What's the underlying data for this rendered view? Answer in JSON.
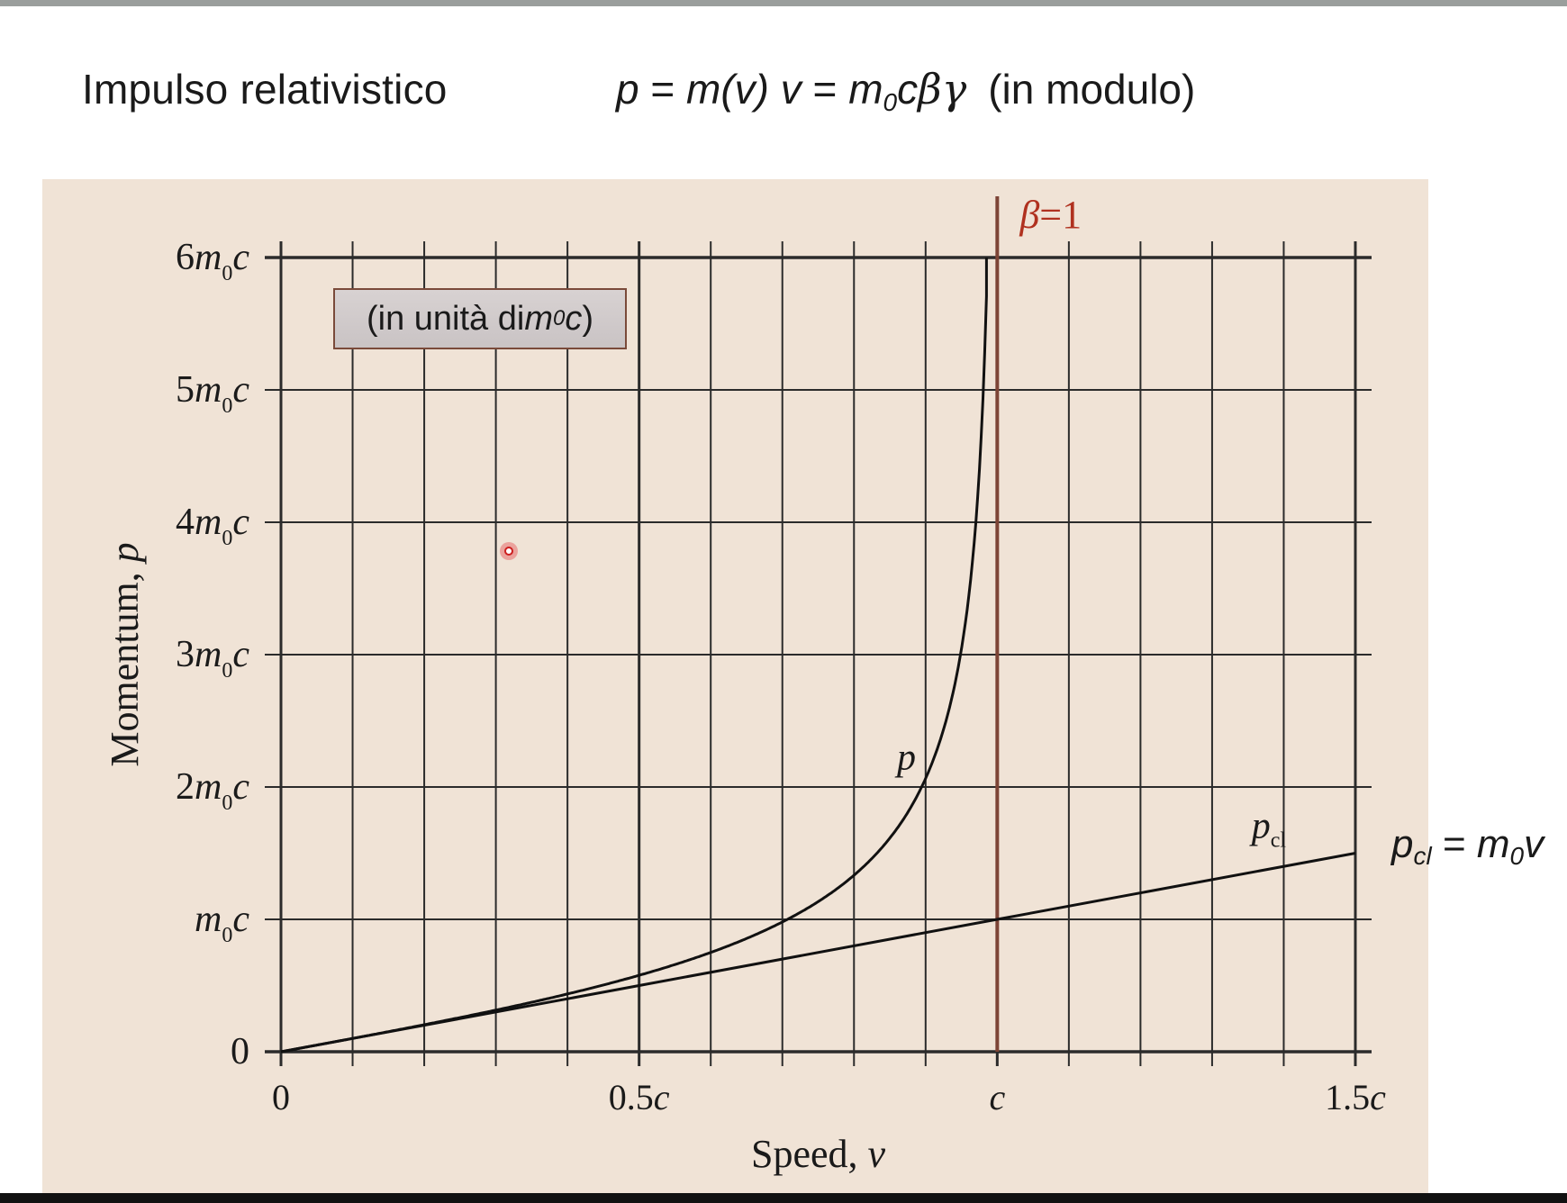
{
  "slide": {
    "title": "Impulso relativistico",
    "formula": {
      "lhs": "p",
      "eq1": " = ",
      "mv": "m(v) v",
      "eq2": " = ",
      "m": "m",
      "m_sub": "0",
      "c": "c",
      "beta_gamma": "βγ",
      "note": "(in modulo)"
    }
  },
  "box_label": {
    "open": "(in unità di ",
    "m": "m",
    "sub": "0",
    "c": "c",
    "close": ")"
  },
  "pcl_formula": {
    "p": "p",
    "p_sub": "cl",
    "eq": " = ",
    "m": "m",
    "m_sub": "0",
    "v": "v"
  },
  "colors": {
    "panel_bg": "#f0e3d6",
    "grid": "#2b2b2b",
    "beta_line": "#7d4436",
    "beta_label": "#b0311f"
  },
  "chart_data": {
    "type": "line",
    "xlabel": "Speed, v",
    "ylabel": "Momentum, p",
    "xlim": [
      0,
      1.5
    ],
    "ylim": [
      0,
      6
    ],
    "x_ticks": [
      {
        "value": 0,
        "label": "0"
      },
      {
        "value": 0.5,
        "label": "0.5c"
      },
      {
        "value": 1,
        "label": "c"
      },
      {
        "value": 1.5,
        "label": "1.5c"
      }
    ],
    "y_ticks": [
      {
        "value": 0,
        "label": "0"
      },
      {
        "value": 1,
        "label": "m0c"
      },
      {
        "value": 2,
        "label": "2m0c"
      },
      {
        "value": 3,
        "label": "3m0c"
      },
      {
        "value": 4,
        "label": "4m0c"
      },
      {
        "value": 5,
        "label": "5m0c"
      },
      {
        "value": 6,
        "label": "6m0c"
      }
    ],
    "grid_minor_step": 0.1,
    "grid": true,
    "series": [
      {
        "name": "p",
        "x": [
          0,
          0.1,
          0.2,
          0.3,
          0.4,
          0.5,
          0.6,
          0.7,
          0.8,
          0.85,
          0.9,
          0.93,
          0.95,
          0.96,
          0.97,
          0.98,
          0.985
        ],
        "y": [
          0,
          0.101,
          0.204,
          0.314,
          0.436,
          0.577,
          0.75,
          0.98,
          1.333,
          1.614,
          2.065,
          2.527,
          3.042,
          3.429,
          3.99,
          4.925,
          5.71
        ]
      },
      {
        "name": "pcl",
        "x": [
          0,
          0.5,
          1.0,
          1.5
        ],
        "y": [
          0,
          0.5,
          1.0,
          1.5
        ]
      }
    ],
    "annotations": [
      {
        "text": "p",
        "x": 0.85,
        "y": 2.2
      },
      {
        "text": "pcl",
        "x": 1.33,
        "y": 1.65
      },
      {
        "text": "β = 1",
        "x": 1.0,
        "y": 6.3
      }
    ],
    "vline": {
      "x": 1.0,
      "label": "β = 1"
    }
  }
}
